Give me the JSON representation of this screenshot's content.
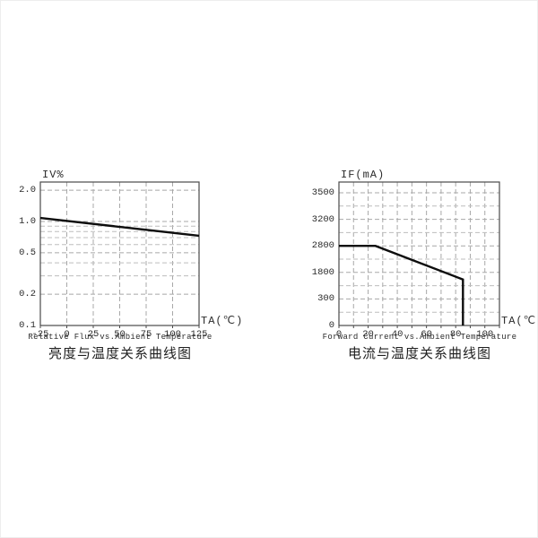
{
  "page": {
    "background": "#ffffff",
    "border": "#ededed"
  },
  "colors": {
    "curve": "#0d0d0d",
    "grid": "#a8a8a8",
    "grid_minor": "#bdbdbd",
    "frame": "#4a4a4a",
    "text": "#2b2b2b"
  },
  "charts": [
    {
      "y_unit": "IV%",
      "x_unit": "TA(℃)",
      "title_en": "Relative Flux vs.Ambient Temperature",
      "title_zh": "亮度与温度关系曲线图",
      "chart_data": {
        "type": "line",
        "title": "Relative Flux vs.Ambient Temperature",
        "xlabel": "TA(℃)",
        "ylabel": "IV%",
        "y_scale": "log",
        "xlim": [
          -25,
          125
        ],
        "ylim": [
          0.1,
          2.4
        ],
        "x_ticks": [
          "-25",
          "0",
          "25",
          "50",
          "75",
          "100",
          "125"
        ],
        "x_grid": [
          0,
          25,
          50,
          75,
          100
        ],
        "y_ticks": [
          "2.0",
          "1.0",
          "0.5",
          "0.2",
          "0.1"
        ],
        "y_minor_grid": [
          0.9,
          0.8,
          0.7,
          0.6,
          0.4,
          0.3
        ],
        "grid": "on",
        "series": [
          {
            "name": "relative-flux",
            "points": [
              [
                -25,
                1.08
              ],
              [
                125,
                0.73
              ]
            ]
          }
        ]
      }
    },
    {
      "y_unit": "IF(mA)",
      "x_unit": "TA(℃)",
      "title_en": "Forward Current vs.Ambient Temperature",
      "title_zh": "电流与温度关系曲线图",
      "chart_data": {
        "type": "line",
        "title": "Forward Current vs.Ambient Temperature",
        "xlabel": "TA(℃)",
        "ylabel": "IF(mA)",
        "y_scale": "segmented-equal-ticks",
        "xlim": [
          0,
          110
        ],
        "ylim": [
          0,
          3500
        ],
        "x_ticks": [
          "0",
          "20",
          "40",
          "60",
          "80",
          "100"
        ],
        "x_grid": [
          10,
          20,
          30,
          40,
          50,
          60,
          70,
          80,
          90,
          100
        ],
        "y_ticks": [
          "3500",
          "3200",
          "2800",
          "1800",
          "300",
          "0"
        ],
        "grid": "on",
        "series": [
          {
            "name": "forward-current",
            "points": [
              [
                0,
                2800
              ],
              [
                25,
                2800
              ],
              [
                85,
                1400
              ],
              [
                85,
                0
              ]
            ]
          }
        ]
      }
    }
  ]
}
